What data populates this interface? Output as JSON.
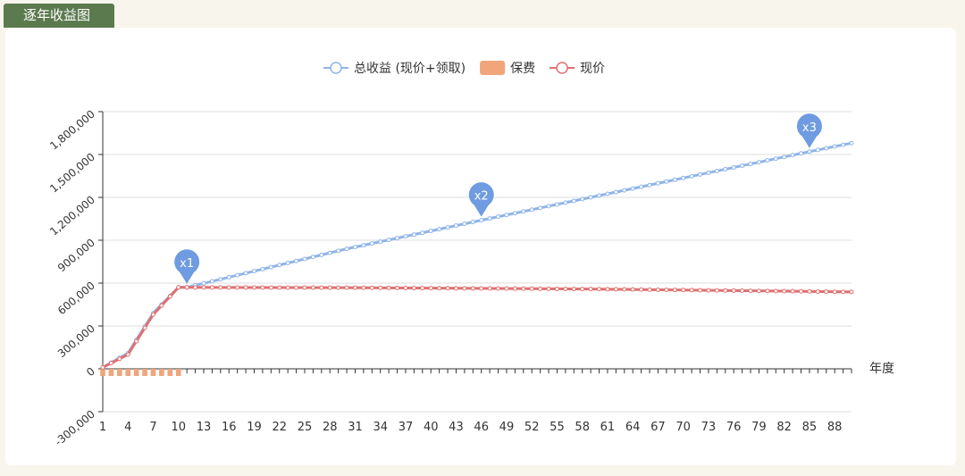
{
  "tab": {
    "label": "逐年收益图"
  },
  "chart_data": {
    "type": "line",
    "legend": {
      "placement": "top-center",
      "items": [
        {
          "name": "总收益 (现价+领取)",
          "color": "#8fb4ea",
          "shape": "line-circle"
        },
        {
          "name": "保费",
          "color": "#f0a57a",
          "shape": "rect"
        },
        {
          "name": "现价",
          "color": "#e07070",
          "shape": "line-circle"
        }
      ]
    },
    "xlabel": "年度",
    "ylabel": "",
    "x_range": [
      1,
      90
    ],
    "x_ticks": [
      1,
      4,
      7,
      10,
      13,
      16,
      19,
      22,
      25,
      28,
      31,
      34,
      37,
      40,
      43,
      46,
      49,
      52,
      55,
      58,
      61,
      64,
      67,
      70,
      73,
      76,
      79,
      82,
      85,
      88
    ],
    "ylim": [
      -300000,
      1800000
    ],
    "y_ticks": [
      -300000,
      0,
      300000,
      600000,
      900000,
      1200000,
      1500000,
      1800000
    ],
    "y_tick_labels": [
      "-300,000",
      "0",
      "300,000",
      "600,000",
      "900,000",
      "1,200,000",
      "1,500,000",
      "1,800,000"
    ],
    "grid": true,
    "series": [
      {
        "name": "总收益 (现价+领取)",
        "type": "line",
        "color": "#8fb4ea",
        "points": [
          [
            1,
            10000
          ],
          [
            4,
            110000
          ],
          [
            7,
            390000
          ],
          [
            10,
            570000
          ],
          [
            11,
            570000
          ],
          [
            30,
            840000
          ],
          [
            46,
            1040000
          ],
          [
            85,
            1520000
          ],
          [
            90,
            1580000
          ]
        ]
      },
      {
        "name": "保费",
        "type": "bar",
        "color": "#f0a57a",
        "x": [
          1,
          2,
          3,
          4,
          5,
          6,
          7,
          8,
          9,
          10
        ],
        "values": [
          -50000,
          -50000,
          -50000,
          -50000,
          -50000,
          -50000,
          -50000,
          -50000,
          -50000,
          -50000
        ]
      },
      {
        "name": "现价",
        "type": "line",
        "color": "#e07070",
        "points": [
          [
            1,
            10000
          ],
          [
            4,
            100000
          ],
          [
            7,
            380000
          ],
          [
            10,
            570000
          ],
          [
            11,
            570000
          ],
          [
            30,
            568000
          ],
          [
            60,
            558000
          ],
          [
            90,
            538000
          ]
        ]
      }
    ],
    "markers": [
      {
        "label": "x1",
        "x": 11,
        "y": 570000
      },
      {
        "label": "x2",
        "x": 46,
        "y": 1040000
      },
      {
        "label": "x3",
        "x": 85,
        "y": 1520000
      }
    ]
  }
}
